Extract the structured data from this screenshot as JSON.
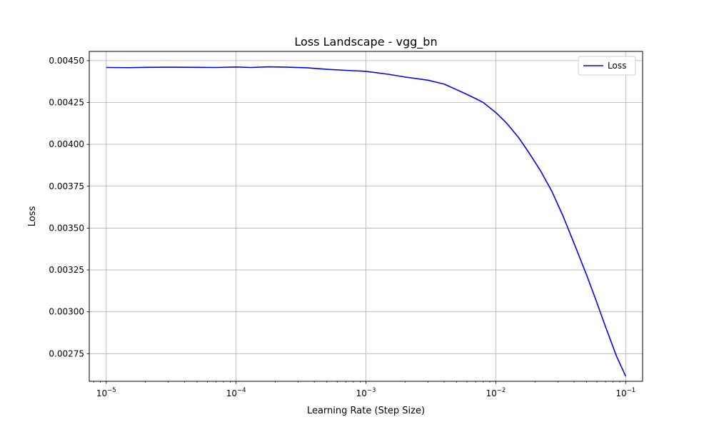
{
  "chart_data": {
    "type": "line",
    "title": "Loss Landscape - vgg_bn",
    "xlabel": "Learning Rate (Step Size)",
    "ylabel": "Loss",
    "xscale": "log",
    "xlim": [
      7.4e-06,
      0.135
    ],
    "ylim": [
      0.002585,
      0.004555
    ],
    "grid": true,
    "legend_position": "top-right",
    "x_ticks": [
      {
        "value": 1e-05,
        "base": "10",
        "exp": "−5"
      },
      {
        "value": 0.0001,
        "base": "10",
        "exp": "−4"
      },
      {
        "value": 0.001,
        "base": "10",
        "exp": "−3"
      },
      {
        "value": 0.01,
        "base": "10",
        "exp": "−2"
      },
      {
        "value": 0.1,
        "base": "10",
        "exp": "−1"
      }
    ],
    "y_ticks": [
      {
        "value": 0.0045,
        "label": "0.00450"
      },
      {
        "value": 0.00425,
        "label": "0.00425"
      },
      {
        "value": 0.004,
        "label": "0.00400"
      },
      {
        "value": 0.00375,
        "label": "0.00375"
      },
      {
        "value": 0.0035,
        "label": "0.00350"
      },
      {
        "value": 0.00325,
        "label": "0.00325"
      },
      {
        "value": 0.003,
        "label": "0.00300"
      },
      {
        "value": 0.00275,
        "label": "0.00275"
      }
    ],
    "series": [
      {
        "name": "Loss",
        "color": "#0000ff",
        "x": [
          1e-05,
          1.5e-05,
          2e-05,
          3e-05,
          5e-05,
          7e-05,
          0.0001,
          0.00013,
          0.00018,
          0.00025,
          0.00035,
          0.0005,
          0.0007,
          0.001,
          0.0015,
          0.002,
          0.003,
          0.004,
          0.005,
          0.006,
          0.007,
          0.008,
          0.01,
          0.012,
          0.015,
          0.018,
          0.022,
          0.027,
          0.033,
          0.04,
          0.05,
          0.06,
          0.07,
          0.085,
          0.1
        ],
        "y": [
          0.004459,
          0.004458,
          0.00446,
          0.004461,
          0.00446,
          0.004459,
          0.004462,
          0.004459,
          0.004463,
          0.004461,
          0.004457,
          0.004448,
          0.004442,
          0.004436,
          0.004418,
          0.004402,
          0.004383,
          0.00436,
          0.004326,
          0.004298,
          0.004273,
          0.00425,
          0.00419,
          0.00413,
          0.00404,
          0.00395,
          0.003845,
          0.00372,
          0.00357,
          0.00341,
          0.00322,
          0.003055,
          0.00291,
          0.002735,
          0.002615
        ]
      }
    ]
  }
}
